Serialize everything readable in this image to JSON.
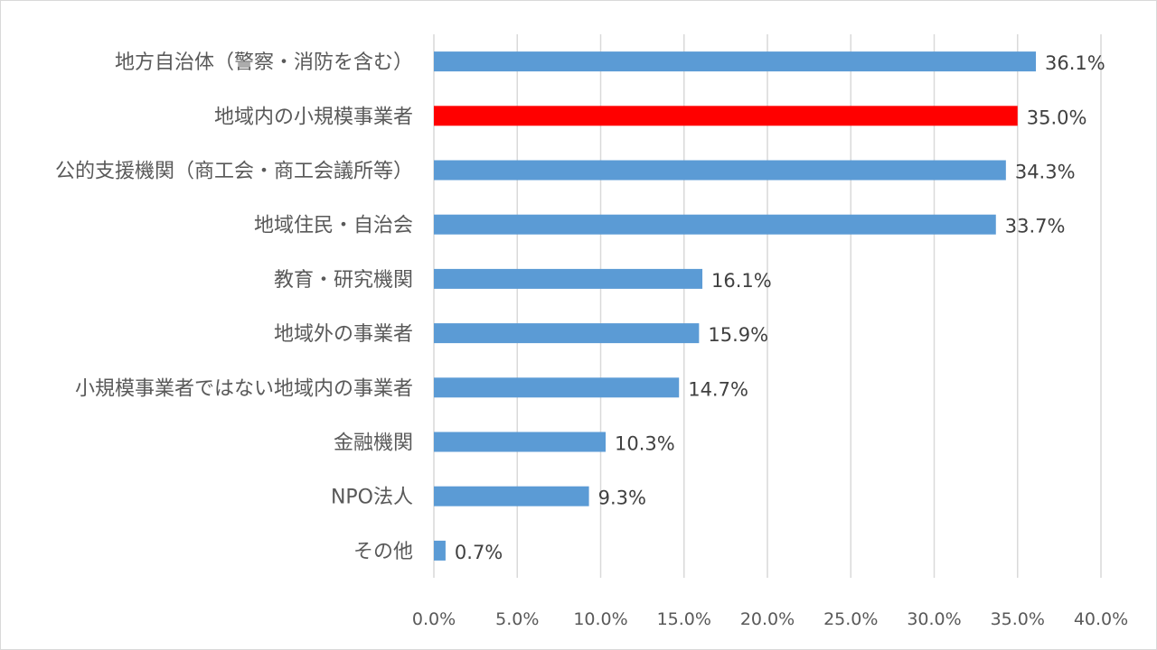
{
  "chart_data": {
    "type": "bar",
    "orientation": "horizontal",
    "categories": [
      "地方自治体（警察・消防を含む）",
      "地域内の小規模事業者",
      "公的支援機関（商工会・商工会議所等）",
      "地域住民・自治会",
      "教育・研究機関",
      "地域外の事業者",
      "小規模事業者ではない地域内の事業者",
      "金融機関",
      "NPO法人",
      "その他"
    ],
    "values": [
      36.1,
      35.0,
      34.3,
      33.7,
      16.1,
      15.9,
      14.7,
      10.3,
      9.3,
      0.7
    ],
    "value_labels": [
      "36.1%",
      "35.0%",
      "34.3%",
      "33.7%",
      "16.1%",
      "15.9%",
      "14.7%",
      "10.3%",
      "9.3%",
      "0.7%"
    ],
    "xlim": [
      0,
      40
    ],
    "x_ticks": [
      "0.0%",
      "5.0%",
      "10.0%",
      "15.0%",
      "20.0%",
      "25.0%",
      "30.0%",
      "35.0%",
      "40.0%"
    ],
    "grid": true,
    "colors": {
      "default_bar": "#5b9bd5",
      "highlight_bar": "#ff0000"
    },
    "highlight_index": 1
  }
}
